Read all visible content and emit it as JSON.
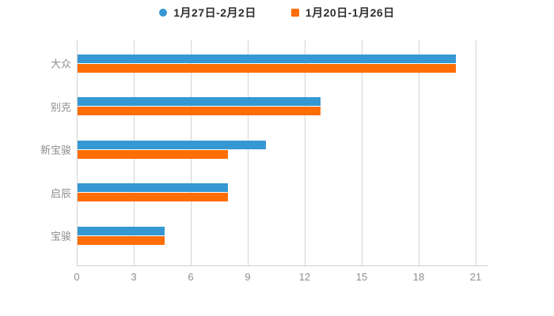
{
  "chart_data": {
    "type": "bar",
    "orientation": "horizontal",
    "title": "",
    "categories": [
      "大众",
      "别克",
      "新宝骏",
      "启辰",
      "宝骏"
    ],
    "series": [
      {
        "name": "1月27日-2月2日",
        "marker": "circle",
        "color": "#3598d3",
        "values": [
          19.9,
          12.8,
          9.9,
          7.9,
          4.6
        ]
      },
      {
        "name": "1月20日-1月26日",
        "marker": "square",
        "color": "#ff6d05",
        "values": [
          19.9,
          12.8,
          7.9,
          7.9,
          4.6
        ]
      }
    ],
    "xlabel": "",
    "ylabel": "",
    "xlim": [
      0,
      21
    ],
    "xticks": [
      "0",
      "3",
      "6",
      "9",
      "12",
      "15",
      "18",
      "21"
    ],
    "grid": true,
    "legend_position": "top",
    "background": "#ffffff",
    "gridline_color": "#d4d4d4",
    "axis_text_color": "#8e8e8e"
  }
}
